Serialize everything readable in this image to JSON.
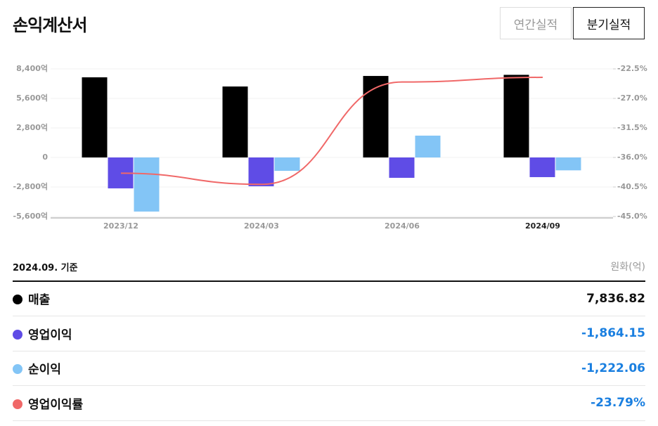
{
  "header": {
    "title": "손익계산서",
    "tabs": [
      "연간실적",
      "분기실적"
    ]
  },
  "chart_data": {
    "type": "bar",
    "categories": [
      "2023/12",
      "2024/03",
      "2024/06",
      "2024/09"
    ],
    "series": [
      {
        "name": "매출",
        "color": "#000000",
        "values": [
          7600,
          6730,
          7730,
          7836.82
        ]
      },
      {
        "name": "영업이익",
        "color": "#5f4ce6",
        "values": [
          -2930,
          -2730,
          -1930,
          -1864.15
        ]
      },
      {
        "name": "순이익",
        "color": "#83c5f6",
        "values": [
          -5130,
          -1270,
          2070,
          -1222.06
        ]
      },
      {
        "name": "영업이익률",
        "type": "line",
        "axis": "y2",
        "color": "#f06868",
        "values": [
          -38.4,
          -40.1,
          -24.5,
          -23.79
        ]
      }
    ],
    "ylim": [
      -5600,
      8400
    ],
    "yticks": [
      {
        "value": -5600,
        "label": "-5,600억"
      },
      {
        "value": -2800,
        "label": "-2,800억"
      },
      0,
      {
        "value": 2800,
        "label": "2,800억"
      },
      {
        "value": 5600,
        "label": "5,600억"
      },
      {
        "value": 8400,
        "label": "8,400억"
      }
    ],
    "y2lim": [
      -45,
      -22.5
    ],
    "y2ticks": [
      {
        "value": -45,
        "label": "-45.0%"
      },
      {
        "value": -40.5,
        "label": "-40.5%"
      },
      {
        "value": -36,
        "label": "-36.0%"
      },
      {
        "value": -31.5,
        "label": "-31.5%"
      },
      {
        "value": -27,
        "label": "-27.0%"
      },
      {
        "value": -22.5,
        "label": "-22.5%"
      }
    ],
    "grid": true
  },
  "summary": {
    "basis": "2024.09. 기준",
    "unit": "원화(억)",
    "rows": [
      "7,836.82",
      "-1,864.15",
      "-1,222.06",
      "-23.79%"
    ]
  }
}
